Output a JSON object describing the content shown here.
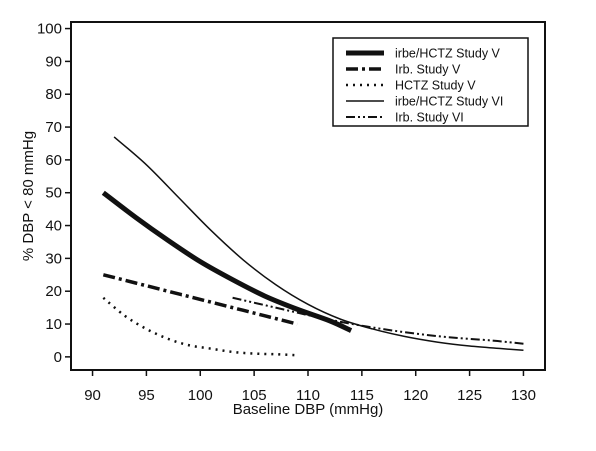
{
  "chart_data": {
    "type": "line",
    "title": "",
    "xlabel": "Baseline DBP (mmHg)",
    "ylabel": "% DBP < 80 mmHg",
    "xlim": [
      88,
      132
    ],
    "ylim": [
      -4,
      102
    ],
    "xticks": [
      90,
      95,
      100,
      105,
      110,
      115,
      120,
      125,
      130
    ],
    "yticks": [
      0,
      10,
      20,
      30,
      40,
      50,
      60,
      70,
      80,
      90,
      100
    ],
    "grid": false,
    "legend_position": "top-right",
    "series": [
      {
        "name": "irbe/HCTZ Study V",
        "style": "thick-solid",
        "color": "#111111",
        "x": [
          91,
          94,
          97,
          100,
          103,
          106,
          109,
          112,
          114
        ],
        "y": [
          50,
          42.5,
          35.5,
          29,
          23.5,
          18.5,
          14.5,
          11,
          8
        ]
      },
      {
        "name": "Irb. Study V",
        "style": "dash-dot",
        "color": "#111111",
        "x": [
          91,
          94,
          97,
          100,
          103,
          106,
          109
        ],
        "y": [
          25,
          22.5,
          20,
          17.5,
          15,
          12.5,
          10
        ]
      },
      {
        "name": "HCTZ Study V",
        "style": "dotted",
        "color": "#111111",
        "x": [
          91,
          93,
          95,
          97,
          99,
          101,
          103,
          105,
          107,
          109
        ],
        "y": [
          18,
          12.5,
          8.5,
          5.5,
          3.5,
          2.5,
          1.5,
          1,
          0.8,
          0.5
        ]
      },
      {
        "name": "irbe/HCTZ Study VI",
        "style": "thin-solid",
        "color": "#111111",
        "x": [
          92,
          95,
          98,
          101,
          104,
          107,
          110,
          113,
          116,
          119,
          122,
          125,
          128,
          130
        ],
        "y": [
          67,
          58.5,
          48.5,
          38.5,
          29.5,
          22,
          16,
          11.5,
          8.5,
          6.2,
          4.5,
          3.3,
          2.5,
          2
        ]
      },
      {
        "name": "Irb. Study VI",
        "style": "dash-dot-dot",
        "color": "#111111",
        "x": [
          103,
          107,
          111,
          115,
          119,
          123,
          127,
          130
        ],
        "y": [
          18,
          15,
          12,
          9.5,
          7.5,
          6,
          5,
          4
        ]
      }
    ]
  }
}
